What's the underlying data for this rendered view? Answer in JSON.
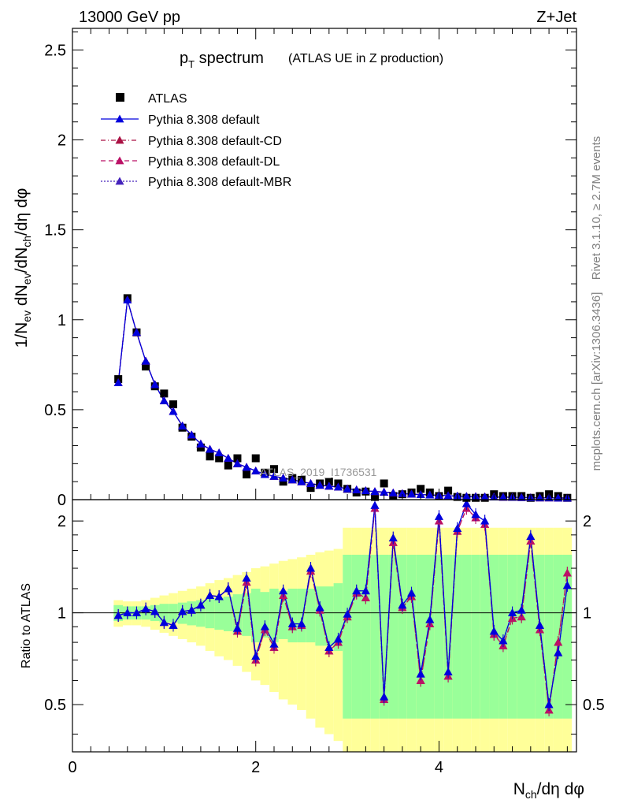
{
  "header": {
    "left": "13000 GeV pp",
    "right": "Z+Jet"
  },
  "side_labels": {
    "rivet": "Rivet 3.1.10, ≥ 2.7M events",
    "mcplots": "mcplots.cern.ch [arXiv:1306.3436]"
  },
  "top_panel": {
    "title_main": "p",
    "title_sub": "T",
    "title_rest": " spectrum",
    "title_note": "(ATLAS UE in Z production)",
    "watermark": "ATLAS_2019_I1736531",
    "ylabel": "1/N_ev dN_ev/dN_ch/dη dφ",
    "yticks": [
      "0",
      "0.5",
      "1",
      "1.5",
      "2",
      "2.5"
    ]
  },
  "bottom_panel": {
    "ylabel": "Ratio to ATLAS",
    "yticks": [
      "0.5",
      "1",
      "2"
    ],
    "xticks": [
      "0",
      "2",
      "4"
    ],
    "xlabel": "N_ch/dη dφ"
  },
  "legend": {
    "entries": [
      {
        "label": "ATLAS",
        "color": "#000000"
      },
      {
        "label": "Pythia 8.308 default",
        "color": "#0000dd"
      },
      {
        "label": "Pythia 8.308 default-CD",
        "color": "#aa1144"
      },
      {
        "label": "Pythia 8.308 default-DL",
        "color": "#bb1166"
      },
      {
        "label": "Pythia 8.308 default-MBR",
        "color": "#4422bb"
      }
    ]
  },
  "chart_data": {
    "type": "scatter",
    "x_range": [
      0,
      5.5
    ],
    "top_ylim": [
      0,
      2.62
    ],
    "ratio_ylim": [
      0.35,
      2.35
    ],
    "ratio_scale": "log",
    "x": [
      0.5,
      0.6,
      0.7,
      0.8,
      0.9,
      1.0,
      1.1,
      1.2,
      1.3,
      1.4,
      1.5,
      1.6,
      1.7,
      1.8,
      1.9,
      2.0,
      2.1,
      2.2,
      2.3,
      2.4,
      2.5,
      2.6,
      2.7,
      2.8,
      2.9,
      3.0,
      3.1,
      3.2,
      3.3,
      3.4,
      3.5,
      3.6,
      3.7,
      3.8,
      3.9,
      4.0,
      4.1,
      4.2,
      4.3,
      4.4,
      4.5,
      4.6,
      4.7,
      4.8,
      4.9,
      5.0,
      5.1,
      5.2,
      5.3,
      5.4
    ],
    "series": [
      {
        "name": "ATLAS",
        "values": [
          0.67,
          1.12,
          0.93,
          0.74,
          0.63,
          0.59,
          0.53,
          0.4,
          0.35,
          0.29,
          0.24,
          0.23,
          0.19,
          0.23,
          0.14,
          0.23,
          0.15,
          0.17,
          0.1,
          0.12,
          0.11,
          0.065,
          0.09,
          0.1,
          0.09,
          0.06,
          0.04,
          0.045,
          0.015,
          0.09,
          0.02,
          0.03,
          0.04,
          0.06,
          0.04,
          0.02,
          0.05,
          0.015,
          0.01,
          0.01,
          0.01,
          0.03,
          0.02,
          0.02,
          0.02,
          0.01,
          0.02,
          0.03,
          0.02,
          0.01
        ]
      },
      {
        "name": "Pythia 8.308 default",
        "values": [
          0.65,
          1.11,
          0.93,
          0.77,
          0.64,
          0.55,
          0.49,
          0.41,
          0.36,
          0.31,
          0.28,
          0.26,
          0.23,
          0.2,
          0.18,
          0.16,
          0.14,
          0.13,
          0.12,
          0.11,
          0.1,
          0.09,
          0.08,
          0.075,
          0.07,
          0.06,
          0.055,
          0.05,
          0.045,
          0.042,
          0.038,
          0.034,
          0.031,
          0.028,
          0.026,
          0.024,
          0.022,
          0.02,
          0.018,
          0.017,
          0.016,
          0.015,
          0.014,
          0.013,
          0.012,
          0.011,
          0.01,
          0.01,
          0.009,
          0.009
        ]
      },
      {
        "name": "Pythia 8.308 default-CD",
        "values": [
          0.65,
          1.11,
          0.93,
          0.77,
          0.64,
          0.55,
          0.49,
          0.41,
          0.36,
          0.31,
          0.28,
          0.26,
          0.23,
          0.2,
          0.18,
          0.16,
          0.14,
          0.13,
          0.12,
          0.11,
          0.1,
          0.09,
          0.08,
          0.075,
          0.07,
          0.06,
          0.055,
          0.05,
          0.045,
          0.042,
          0.038,
          0.034,
          0.031,
          0.028,
          0.026,
          0.024,
          0.022,
          0.02,
          0.018,
          0.017,
          0.016,
          0.015,
          0.014,
          0.013,
          0.012,
          0.011,
          0.01,
          0.01,
          0.009,
          0.009
        ]
      },
      {
        "name": "Pythia 8.308 default-DL",
        "values": [
          0.65,
          1.11,
          0.93,
          0.77,
          0.64,
          0.55,
          0.49,
          0.41,
          0.36,
          0.31,
          0.28,
          0.26,
          0.23,
          0.2,
          0.18,
          0.16,
          0.14,
          0.13,
          0.12,
          0.11,
          0.1,
          0.09,
          0.08,
          0.075,
          0.07,
          0.06,
          0.055,
          0.05,
          0.045,
          0.042,
          0.038,
          0.034,
          0.031,
          0.028,
          0.026,
          0.024,
          0.022,
          0.02,
          0.018,
          0.017,
          0.016,
          0.015,
          0.014,
          0.013,
          0.012,
          0.011,
          0.01,
          0.01,
          0.009,
          0.009
        ]
      },
      {
        "name": "Pythia 8.308 default-MBR",
        "values": [
          0.65,
          1.11,
          0.93,
          0.77,
          0.64,
          0.55,
          0.49,
          0.41,
          0.36,
          0.31,
          0.28,
          0.26,
          0.23,
          0.2,
          0.18,
          0.16,
          0.14,
          0.13,
          0.12,
          0.11,
          0.1,
          0.09,
          0.08,
          0.075,
          0.07,
          0.06,
          0.055,
          0.05,
          0.045,
          0.042,
          0.038,
          0.034,
          0.031,
          0.028,
          0.026,
          0.024,
          0.022,
          0.02,
          0.018,
          0.017,
          0.016,
          0.015,
          0.014,
          0.013,
          0.012,
          0.011,
          0.01,
          0.01,
          0.009,
          0.009
        ]
      }
    ],
    "ratio": {
      "default": [
        0.98,
        1.0,
        1.0,
        1.03,
        1.01,
        0.93,
        0.91,
        1.01,
        1.02,
        1.06,
        1.14,
        1.13,
        1.2,
        0.89,
        1.3,
        0.72,
        0.9,
        0.79,
        1.18,
        0.92,
        0.92,
        1.4,
        1.04,
        0.77,
        0.82,
        0.99,
        1.18,
        1.18,
        2.25,
        0.53,
        1.76,
        1.06,
        1.16,
        0.63,
        0.95,
        2.07,
        0.64,
        1.89,
        2.28,
        2.1,
        2.0,
        0.87,
        0.81,
        1.0,
        1.02,
        1.78,
        0.91,
        0.5,
        0.74,
        1.23
      ],
      "cd": [
        0.98,
        1.0,
        1.0,
        1.03,
        1.01,
        0.93,
        0.91,
        1.01,
        1.02,
        1.06,
        1.14,
        1.13,
        1.2,
        0.87,
        1.26,
        0.7,
        0.88,
        0.77,
        1.14,
        0.9,
        0.91,
        1.37,
        1.02,
        0.75,
        0.8,
        0.97,
        1.16,
        1.12,
        2.2,
        0.52,
        1.7,
        1.04,
        1.13,
        0.6,
        0.92,
        2.0,
        0.62,
        1.85,
        2.2,
        2.05,
        1.95,
        0.85,
        0.78,
        0.96,
        0.97,
        1.72,
        0.88,
        0.48,
        0.8,
        1.35
      ]
    },
    "bands": {
      "inner_halfwidth": [
        0.06,
        0.05,
        0.05,
        0.05,
        0.06,
        0.07,
        0.07,
        0.08,
        0.09,
        0.1,
        0.11,
        0.12,
        0.13,
        0.15,
        0.16,
        0.2,
        0.17,
        0.2,
        0.18,
        0.2,
        0.2,
        0.2,
        0.22,
        0.22,
        0.25,
        0.55,
        0.55,
        0.55,
        0.55,
        0.55,
        0.55,
        0.55,
        0.55,
        0.55,
        0.55,
        0.55,
        0.55,
        0.55,
        0.55,
        0.55,
        0.55,
        0.55,
        0.55,
        0.55,
        0.55,
        0.55,
        0.55,
        0.55,
        0.55,
        0.55
      ],
      "outer_halfwidth": [
        0.1,
        0.09,
        0.09,
        0.1,
        0.12,
        0.14,
        0.16,
        0.18,
        0.2,
        0.22,
        0.25,
        0.28,
        0.3,
        0.33,
        0.36,
        0.4,
        0.42,
        0.45,
        0.48,
        0.5,
        0.52,
        0.55,
        0.58,
        0.6,
        0.62,
        0.9,
        0.9,
        0.9,
        0.9,
        0.9,
        0.9,
        0.9,
        0.9,
        0.9,
        0.9,
        0.9,
        0.9,
        0.9,
        0.9,
        0.9,
        0.9,
        0.9,
        0.9,
        0.9,
        0.9,
        0.9,
        0.9,
        0.9,
        0.9,
        0.9
      ],
      "inner_color": "#99ff99",
      "outer_color": "#ffff99"
    }
  }
}
